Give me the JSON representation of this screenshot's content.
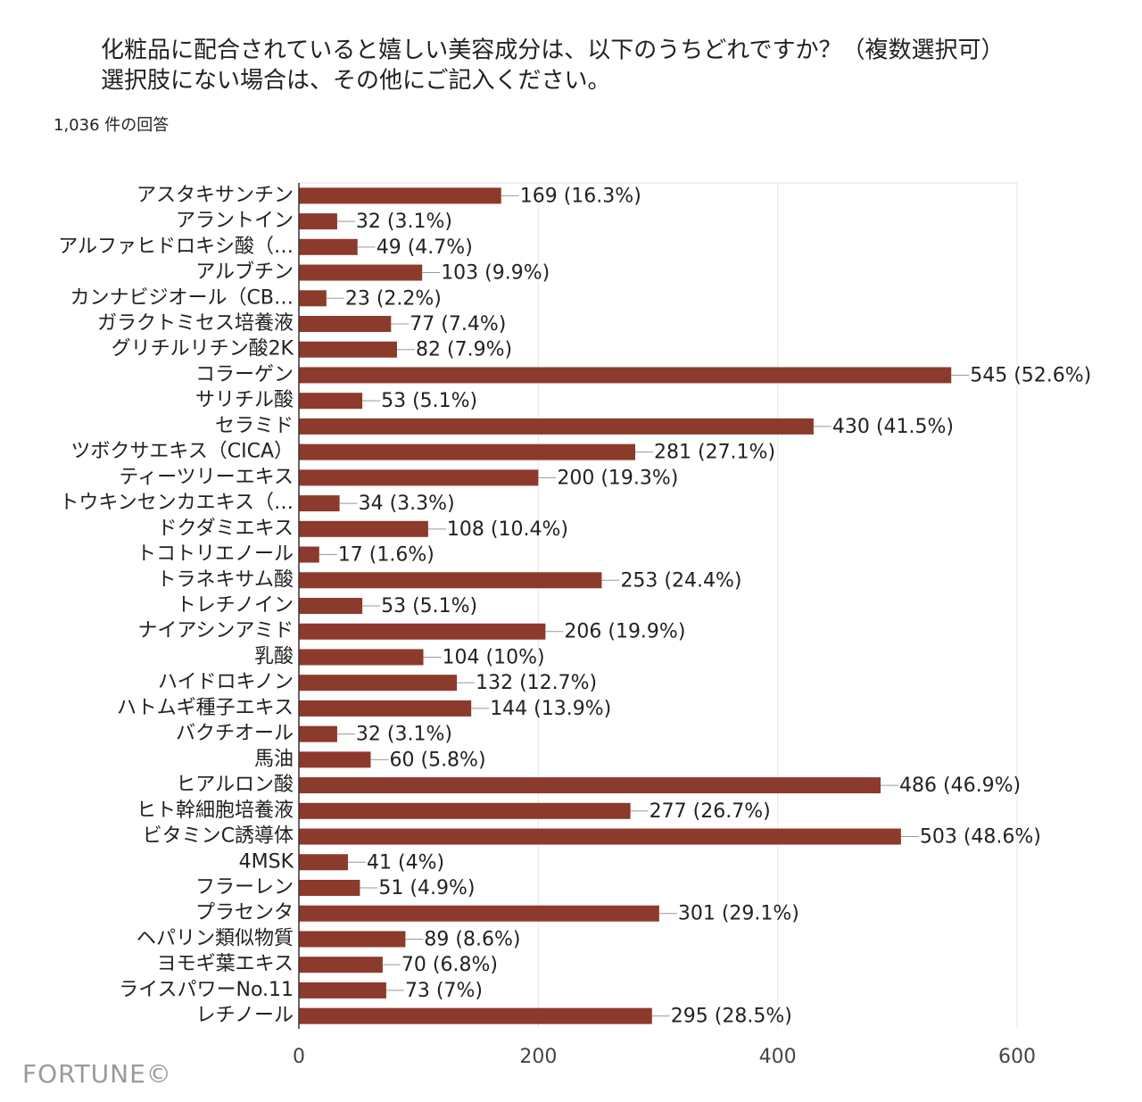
{
  "chart_data": {
    "type": "bar",
    "orientation": "horizontal",
    "title": [
      "化粧品に配合されていると嬉しい美容成分は、以下のうちどれですか？（複数選択可）",
      "選択肢にない場合は、その他にご記入ください。"
    ],
    "subtitle": "1,036 件の回答",
    "watermark": "FORTUNE©",
    "categories": [
      "アスタキサンチン",
      "アラントイン",
      "アルファヒドロキシ酸（…",
      "アルブチン",
      "カンナビジオール（CB…",
      "ガラクトミセス培養液",
      "グリチルリチン酸2K",
      "コラーゲン",
      "サリチル酸",
      "セラミド",
      "ツボクサエキス（CICA）",
      "ティーツリーエキス",
      "トウキンセンカエキス（…",
      "ドクダミエキス",
      "トコトリエノール",
      "トラネキサム酸",
      "トレチノイン",
      "ナイアシンアミド",
      "乳酸",
      "ハイドロキノン",
      "ハトムギ種子エキス",
      "バクチオール",
      "馬油",
      "ヒアルロン酸",
      "ヒト幹細胞培養液",
      "ビタミンC誘導体",
      "4MSK",
      "フラーレン",
      "プラセンタ",
      "ヘパリン類似物質",
      "ヨモギ葉エキス",
      "ライスパワーNo.11",
      "レチノール"
    ],
    "values": [
      169,
      32,
      49,
      103,
      23,
      77,
      82,
      545,
      53,
      430,
      281,
      200,
      34,
      108,
      17,
      253,
      53,
      206,
      104,
      132,
      144,
      32,
      60,
      486,
      277,
      503,
      41,
      51,
      301,
      89,
      70,
      73,
      295
    ],
    "value_labels": [
      "169 (16.3%)",
      "32 (3.1%)",
      "49 (4.7%)",
      "103 (9.9%)",
      "23 (2.2%)",
      "77 (7.4%)",
      "82 (7.9%)",
      "545 (52.6%)",
      "53 (5.1%)",
      "430 (41.5%)",
      "281 (27.1%)",
      "200 (19.3%)",
      "34 (3.3%)",
      "108 (10.4%)",
      "17 (1.6%)",
      "253 (24.4%)",
      "53 (5.1%)",
      "206 (19.9%)",
      "104 (10%)",
      "132 (12.7%)",
      "144 (13.9%)",
      "32 (3.1%)",
      "60 (5.8%)",
      "486 (46.9%)",
      "277 (26.7%)",
      "503 (48.6%)",
      "41 (4%)",
      "51 (4.9%)",
      "301 (29.1%)",
      "89 (8.6%)",
      "70 (6.8%)",
      "73 (7%)",
      "295 (28.5%)"
    ],
    "color": "#8c3a2b",
    "xlim": [
      0,
      600
    ],
    "xticks": [
      0,
      200,
      400,
      600
    ],
    "grid": true
  }
}
